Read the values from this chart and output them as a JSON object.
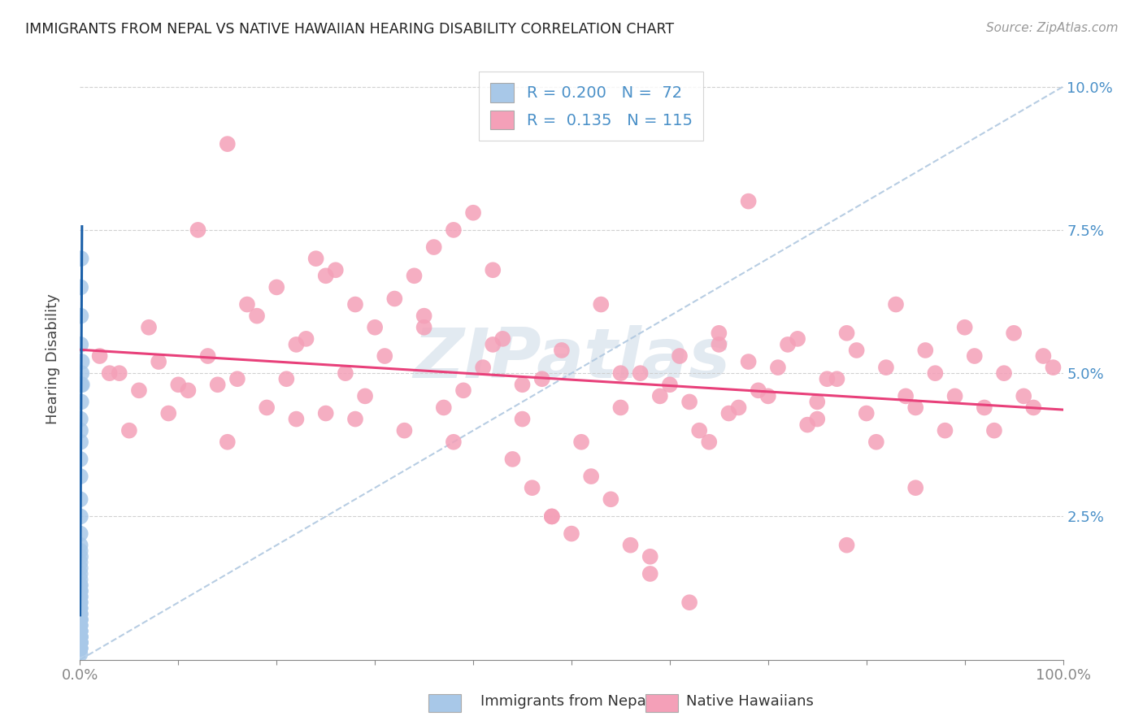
{
  "title": "IMMIGRANTS FROM NEPAL VS NATIVE HAWAIIAN HEARING DISABILITY CORRELATION CHART",
  "source": "Source: ZipAtlas.com",
  "ylabel": "Hearing Disability",
  "ytick_labels": [
    "2.5%",
    "5.0%",
    "7.5%",
    "10.0%"
  ],
  "ytick_values": [
    0.025,
    0.05,
    0.075,
    0.1
  ],
  "legend_1_label_r": "R = 0.200",
  "legend_1_label_n": "N =  72",
  "legend_2_label_r": "R =  0.135",
  "legend_2_label_n": "N = 115",
  "blue_color": "#a8c8e8",
  "pink_color": "#f4a0b8",
  "blue_line_color": "#1a5fa8",
  "pink_line_color": "#e8407a",
  "watermark_text": "ZIPatlas",
  "xlim": [
    0.0,
    1.0
  ],
  "ylim": [
    0.0,
    0.105
  ],
  "x_tick_positions": [
    0.0,
    0.1,
    0.2,
    0.3,
    0.4,
    0.5,
    0.6,
    0.7,
    0.8,
    0.9,
    1.0
  ],
  "nepal_x": [
    0.0002,
    0.0003,
    0.0002,
    0.0004,
    0.0003,
    0.0002,
    0.0003,
    0.0005,
    0.0002,
    0.0003,
    0.0002,
    0.0002,
    0.0003,
    0.0002,
    0.0004,
    0.0003,
    0.0002,
    0.0003,
    0.0002,
    0.0003,
    0.0001,
    0.0001,
    0.0002,
    0.0001,
    0.0004,
    0.0001,
    0.0002,
    0.0001,
    0.0004,
    0.0002,
    0.0001,
    0.0002,
    0.0001,
    0.0002,
    0.0001,
    0.0001,
    0.0002,
    0.0001,
    0.0002,
    0.0001,
    0.0001,
    0.0002,
    0.0001,
    0.0004,
    0.0002,
    0.0001,
    0.0002,
    0.0005,
    0.0001,
    0.0002,
    0.0001,
    0.0001,
    0.0001,
    0.0001,
    0.0001,
    0.0001,
    0.0001,
    0.0001,
    0.0001,
    0.0001,
    0.0006,
    0.0005,
    0.0004,
    0.0007,
    0.0008,
    0.0006,
    0.0009,
    0.001,
    0.0012,
    0.0015,
    0.002,
    0.0018
  ],
  "nepal_y": [
    0.035,
    0.032,
    0.028,
    0.025,
    0.022,
    0.02,
    0.019,
    0.018,
    0.017,
    0.016,
    0.015,
    0.014,
    0.013,
    0.013,
    0.012,
    0.012,
    0.011,
    0.011,
    0.01,
    0.01,
    0.009,
    0.009,
    0.009,
    0.008,
    0.008,
    0.008,
    0.007,
    0.007,
    0.007,
    0.007,
    0.006,
    0.006,
    0.006,
    0.006,
    0.005,
    0.005,
    0.005,
    0.005,
    0.005,
    0.004,
    0.004,
    0.004,
    0.004,
    0.004,
    0.004,
    0.003,
    0.003,
    0.003,
    0.003,
    0.003,
    0.003,
    0.003,
    0.003,
    0.003,
    0.002,
    0.002,
    0.002,
    0.002,
    0.002,
    0.001,
    0.038,
    0.04,
    0.042,
    0.055,
    0.06,
    0.065,
    0.048,
    0.07,
    0.045,
    0.05,
    0.048,
    0.052
  ],
  "hawaii_x": [
    0.03,
    0.05,
    0.07,
    0.09,
    0.11,
    0.13,
    0.15,
    0.17,
    0.19,
    0.21,
    0.23,
    0.25,
    0.27,
    0.29,
    0.31,
    0.33,
    0.35,
    0.37,
    0.39,
    0.41,
    0.43,
    0.45,
    0.47,
    0.49,
    0.51,
    0.53,
    0.55,
    0.57,
    0.59,
    0.61,
    0.63,
    0.65,
    0.67,
    0.69,
    0.71,
    0.73,
    0.75,
    0.77,
    0.79,
    0.81,
    0.83,
    0.85,
    0.87,
    0.89,
    0.91,
    0.93,
    0.95,
    0.97,
    0.99,
    0.1,
    0.08,
    0.06,
    0.04,
    0.02,
    0.14,
    0.16,
    0.18,
    0.2,
    0.22,
    0.24,
    0.26,
    0.28,
    0.3,
    0.32,
    0.34,
    0.36,
    0.38,
    0.4,
    0.42,
    0.44,
    0.46,
    0.48,
    0.5,
    0.52,
    0.54,
    0.56,
    0.58,
    0.6,
    0.62,
    0.64,
    0.66,
    0.68,
    0.7,
    0.72,
    0.74,
    0.76,
    0.78,
    0.8,
    0.82,
    0.84,
    0.86,
    0.88,
    0.9,
    0.92,
    0.94,
    0.96,
    0.98,
    0.12,
    0.35,
    0.55,
    0.75,
    0.25,
    0.45,
    0.65,
    0.85,
    0.15,
    0.38,
    0.58,
    0.78,
    0.48,
    0.68,
    0.28,
    0.22,
    0.42,
    0.62
  ],
  "hawaii_y": [
    0.05,
    0.04,
    0.058,
    0.043,
    0.047,
    0.053,
    0.038,
    0.062,
    0.044,
    0.049,
    0.056,
    0.043,
    0.05,
    0.046,
    0.053,
    0.04,
    0.058,
    0.044,
    0.047,
    0.051,
    0.056,
    0.042,
    0.049,
    0.054,
    0.038,
    0.062,
    0.044,
    0.05,
    0.046,
    0.053,
    0.04,
    0.057,
    0.044,
    0.047,
    0.051,
    0.056,
    0.042,
    0.049,
    0.054,
    0.038,
    0.062,
    0.044,
    0.05,
    0.046,
    0.053,
    0.04,
    0.057,
    0.044,
    0.051,
    0.048,
    0.052,
    0.047,
    0.05,
    0.053,
    0.048,
    0.049,
    0.06,
    0.065,
    0.055,
    0.07,
    0.068,
    0.042,
    0.058,
    0.063,
    0.067,
    0.072,
    0.075,
    0.078,
    0.055,
    0.035,
    0.03,
    0.025,
    0.022,
    0.032,
    0.028,
    0.02,
    0.018,
    0.048,
    0.045,
    0.038,
    0.043,
    0.052,
    0.046,
    0.055,
    0.041,
    0.049,
    0.057,
    0.043,
    0.051,
    0.046,
    0.054,
    0.04,
    0.058,
    0.044,
    0.05,
    0.046,
    0.053,
    0.075,
    0.06,
    0.05,
    0.045,
    0.067,
    0.048,
    0.055,
    0.03,
    0.09,
    0.038,
    0.015,
    0.02,
    0.025,
    0.08,
    0.062,
    0.042,
    0.068,
    0.01
  ]
}
